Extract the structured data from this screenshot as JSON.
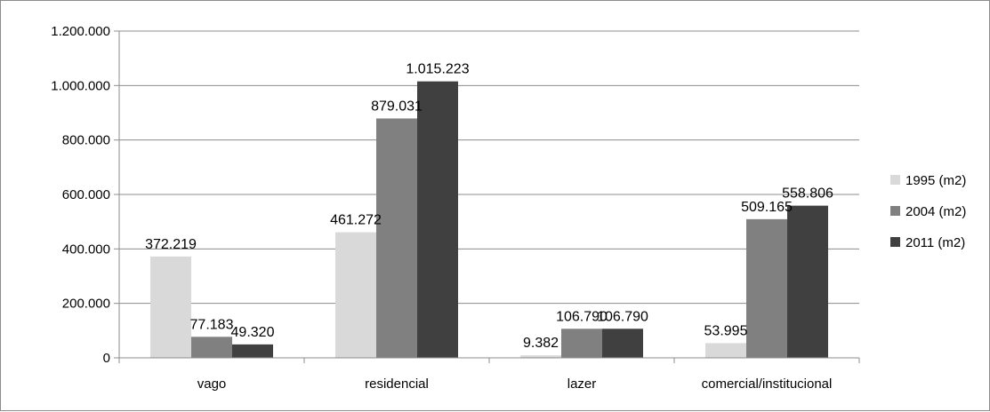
{
  "chart_data": {
    "type": "bar",
    "categories": [
      "vago",
      "residencial",
      "lazer",
      "comercial/institucional"
    ],
    "series": [
      {
        "name": "1995 (m2)",
        "color": "#d9d9d9",
        "values": [
          372219,
          461272,
          9382,
          53995
        ],
        "labels": [
          "372.219",
          "461.272",
          "9.382",
          "53.995"
        ]
      },
      {
        "name": "2004 (m2)",
        "color": "#808080",
        "values": [
          77183,
          879031,
          106790,
          509165
        ],
        "labels": [
          "77.183",
          "879.031",
          "106.790",
          "509.165"
        ]
      },
      {
        "name": "2011 (m2)",
        "color": "#404040",
        "values": [
          49320,
          1015223,
          106790,
          558806
        ],
        "labels": [
          "49.320",
          "1.015.223",
          "106.790",
          "558.806"
        ]
      }
    ],
    "ylim": [
      0,
      1200000
    ],
    "yticks": [
      0,
      200000,
      400000,
      600000,
      800000,
      1000000,
      1200000
    ],
    "ytick_labels": [
      "0",
      "200.000",
      "400.000",
      "600.000",
      "800.000",
      "1.000.000",
      "1.200.000"
    ],
    "grid": true,
    "legend_position": "right",
    "title": "",
    "xlabel": "",
    "ylabel": ""
  }
}
